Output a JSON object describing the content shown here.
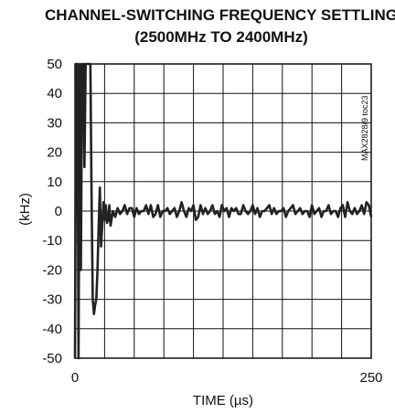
{
  "chart_data": {
    "type": "line",
    "title": "CHANNEL-SWITCHING FREQUENCY SETTLING",
    "subtitle": "(2500MHz TO 2400MHz)",
    "xlabel": "TIME (µs)",
    "ylabel": "(kHz)",
    "figure_code": "MAX2828/9 toc23",
    "xlim": [
      0,
      250
    ],
    "ylim": [
      -50,
      50
    ],
    "x_ticks": [
      0,
      250
    ],
    "x_tick_labels": [
      "0",
      "250"
    ],
    "y_ticks": [
      50,
      40,
      30,
      20,
      10,
      0,
      -10,
      -20,
      -30,
      -40,
      -50
    ],
    "y_tick_labels": [
      "50",
      "40",
      "30",
      "20",
      "10",
      "0",
      "-10",
      "-20",
      "-30",
      "-40",
      "-50"
    ],
    "grid": true,
    "x_gridlines": 10,
    "y_gridlines": 10,
    "line_color": "#222222",
    "series": [
      {
        "x": [
          0,
          1,
          2,
          3,
          4,
          5,
          6,
          7,
          8,
          9,
          10,
          11,
          12,
          13,
          14,
          15,
          16,
          17,
          18,
          19,
          20,
          21,
          22,
          23,
          24,
          25,
          26,
          27,
          28,
          29,
          30,
          32,
          34,
          36,
          38,
          40,
          42,
          44,
          46,
          48,
          50,
          52,
          54,
          56,
          58,
          60,
          62,
          64,
          66,
          68,
          70,
          72,
          74,
          76,
          78,
          80,
          82,
          84,
          86,
          88,
          90,
          92,
          94,
          96,
          98,
          100,
          102,
          104,
          106,
          108,
          110,
          112,
          114,
          116,
          118,
          120,
          122,
          124,
          126,
          128,
          130,
          132,
          134,
          136,
          138,
          140,
          142,
          144,
          146,
          148,
          150,
          152,
          154,
          156,
          158,
          160,
          162,
          164,
          166,
          168,
          170,
          172,
          174,
          176,
          178,
          180,
          182,
          184,
          186,
          188,
          190,
          192,
          194,
          196,
          198,
          200,
          202,
          204,
          206,
          208,
          210,
          212,
          214,
          216,
          218,
          220,
          222,
          224,
          226,
          228,
          230,
          232,
          234,
          236,
          238,
          240,
          242,
          244,
          246,
          248,
          250
        ],
        "y": [
          -50,
          50,
          50,
          -50,
          50,
          -20,
          50,
          50,
          15,
          50,
          50,
          50,
          50,
          50,
          5,
          -30,
          -35,
          -32,
          -30,
          -20,
          -5,
          8,
          -12,
          -5,
          3,
          -3,
          2,
          -4,
          -3,
          2,
          -5,
          0,
          -2,
          1,
          -1,
          0,
          2,
          -1,
          1,
          1,
          -2,
          1,
          -1,
          0,
          0,
          2,
          -1,
          2,
          -2,
          -1,
          2,
          -2,
          0,
          0,
          1,
          -1,
          0,
          1,
          -2,
          0,
          3,
          0,
          -2,
          1,
          0,
          2,
          -3,
          -2,
          2,
          -1,
          1,
          -1,
          0,
          2,
          -1,
          0,
          -2,
          2,
          0,
          1,
          -2,
          1,
          0,
          1,
          -1,
          -1,
          2,
          0,
          -1,
          0,
          2,
          -1,
          1,
          -2,
          0,
          0,
          1,
          2,
          -1,
          1,
          -1,
          0,
          0,
          1,
          -2,
          0,
          1,
          2,
          -1,
          0,
          1,
          -1,
          0,
          0,
          -2,
          2,
          -1,
          0,
          1,
          -2,
          0,
          0,
          2,
          -1,
          0,
          0,
          -2,
          1,
          2,
          -2,
          3,
          0,
          -1,
          1,
          -1,
          0,
          2,
          -1,
          3,
          2,
          -2
        ]
      }
    ]
  }
}
